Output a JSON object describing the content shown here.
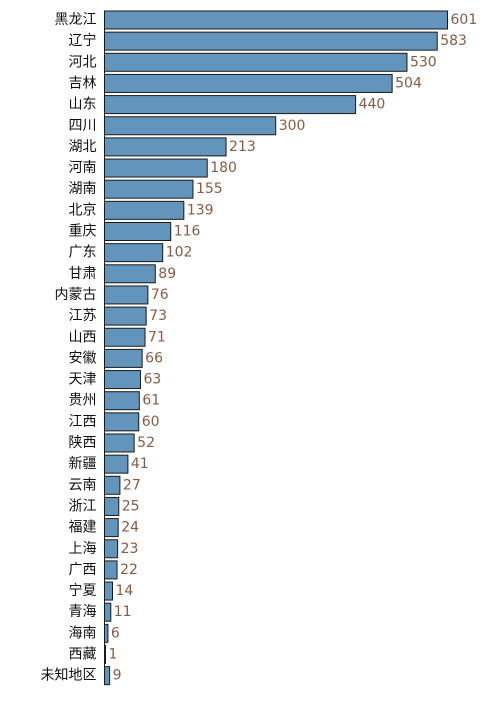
{
  "chart_data": {
    "type": "bar",
    "orientation": "horizontal",
    "categories": [
      "黑龙江",
      "辽宁",
      "河北",
      "吉林",
      "山东",
      "四川",
      "湖北",
      "河南",
      "湖南",
      "北京",
      "重庆",
      "广东",
      "甘肃",
      "内蒙古",
      "江苏",
      "山西",
      "安徽",
      "天津",
      "贵州",
      "江西",
      "陕西",
      "新疆",
      "云南",
      "浙江",
      "福建",
      "上海",
      "广西",
      "宁夏",
      "青海",
      "海南",
      "西藏",
      "未知地区"
    ],
    "values": [
      601,
      583,
      530,
      504,
      440,
      300,
      213,
      180,
      155,
      139,
      116,
      102,
      89,
      76,
      73,
      71,
      66,
      63,
      61,
      60,
      52,
      41,
      27,
      25,
      24,
      23,
      22,
      14,
      11,
      6,
      1,
      9
    ],
    "xlim": [
      0,
      601
    ],
    "grid": false,
    "legend": "none",
    "data_labels": true,
    "colors": {
      "bar_fill": "#6394bc",
      "bar_stroke": "#1a1a1a",
      "value_label": "#8a5a44",
      "category_label": "#111111"
    }
  }
}
